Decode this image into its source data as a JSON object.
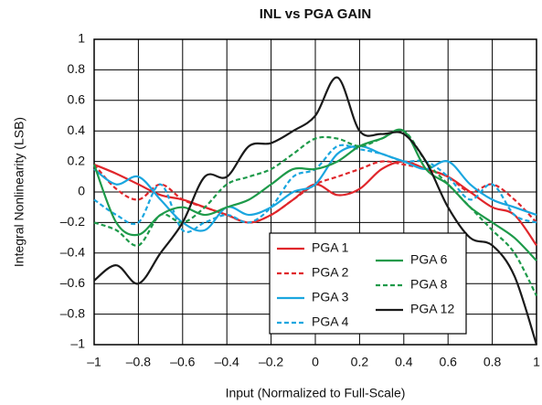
{
  "chart_data": {
    "type": "line",
    "title": "INL vs PGA GAIN",
    "x_label": "Input (Normalized to Full-Scale)",
    "y_label": "Integral Nonlinearity (LSB)",
    "x": [
      -1,
      -0.9,
      -0.8,
      -0.7,
      -0.6,
      -0.5,
      -0.4,
      -0.3,
      -0.2,
      -0.1,
      0,
      0.1,
      0.2,
      0.3,
      0.4,
      0.5,
      0.6,
      0.7,
      0.8,
      0.9,
      1
    ],
    "series": [
      {
        "name": "PGA 1",
        "color": "#e0262b",
        "style": "solid",
        "values": [
          0.18,
          0.12,
          0.05,
          -0.02,
          -0.05,
          -0.1,
          -0.15,
          -0.2,
          -0.15,
          -0.05,
          0.05,
          -0.02,
          0.02,
          0.15,
          0.2,
          0.15,
          0.1,
          0.0,
          -0.1,
          -0.15,
          -0.35
        ]
      },
      {
        "name": "PGA 2",
        "color": "#e0262b",
        "style": "dashed",
        "values": [
          0.18,
          0.02,
          -0.05,
          0.05,
          -0.05,
          -0.1,
          -0.15,
          -0.2,
          -0.15,
          -0.05,
          0.05,
          0.1,
          0.15,
          0.2,
          0.18,
          0.15,
          0.1,
          0.0,
          0.05,
          -0.05,
          -0.2
        ]
      },
      {
        "name": "PGA 3",
        "color": "#1aa6df",
        "style": "solid",
        "values": [
          0.15,
          0.05,
          0.1,
          -0.05,
          -0.2,
          -0.25,
          -0.1,
          -0.15,
          -0.1,
          0.0,
          0.05,
          0.25,
          0.3,
          0.25,
          0.2,
          0.15,
          0.2,
          0.05,
          -0.05,
          -0.1,
          -0.15
        ]
      },
      {
        "name": "PGA 4",
        "color": "#1aa6df",
        "style": "dashed",
        "values": [
          -0.05,
          -0.15,
          -0.2,
          0.05,
          -0.25,
          -0.2,
          -0.15,
          -0.2,
          -0.1,
          0.1,
          0.15,
          0.3,
          0.28,
          0.25,
          0.2,
          0.2,
          0.1,
          -0.05,
          0.05,
          -0.15,
          -0.2
        ]
      },
      {
        "name": "PGA 6",
        "color": "#1e9a4a",
        "style": "solid",
        "values": [
          0.18,
          -0.2,
          -0.28,
          -0.15,
          -0.1,
          -0.15,
          -0.1,
          -0.05,
          0.05,
          0.15,
          0.15,
          0.2,
          0.3,
          0.35,
          0.4,
          0.15,
          0.05,
          -0.1,
          -0.2,
          -0.3,
          -0.45
        ]
      },
      {
        "name": "PGA 8",
        "color": "#1e9a4a",
        "style": "dashed",
        "values": [
          -0.2,
          -0.25,
          -0.35,
          -0.15,
          -0.2,
          -0.1,
          0.05,
          0.1,
          0.15,
          0.25,
          0.35,
          0.35,
          0.3,
          0.35,
          0.4,
          0.2,
          0.05,
          -0.1,
          -0.25,
          -0.4,
          -0.68
        ]
      },
      {
        "name": "PGA 12",
        "color": "#1a1a1a",
        "style": "solid",
        "values": [
          -0.58,
          -0.48,
          -0.6,
          -0.4,
          -0.2,
          0.1,
          0.1,
          0.3,
          0.32,
          0.4,
          0.5,
          0.75,
          0.4,
          0.38,
          0.38,
          0.2,
          -0.1,
          -0.3,
          -0.35,
          -0.55,
          -1.0
        ]
      }
    ],
    "xlim": [
      -1,
      1
    ],
    "xticks": [
      {
        "value": -1,
        "label": "–1"
      },
      {
        "value": -0.8,
        "label": "–0.8"
      },
      {
        "value": -0.6,
        "label": "–0.6"
      },
      {
        "value": -0.4,
        "label": "–0.4"
      },
      {
        "value": -0.2,
        "label": "–0.2"
      },
      0,
      0.2,
      0.4,
      0.6,
      0.8,
      1
    ],
    "ylim": [
      -1,
      1
    ],
    "yticks": [
      {
        "value": -1,
        "label": "–1"
      },
      {
        "value": -0.8,
        "label": "–0.8"
      },
      {
        "value": -0.6,
        "label": "–0.6"
      },
      {
        "value": -0.4,
        "label": "–0.4"
      },
      {
        "value": -0.2,
        "label": "–0.2"
      },
      0,
      0.2,
      0.4,
      0.6,
      0.8,
      1
    ],
    "grid": true,
    "legend": "lower center"
  }
}
